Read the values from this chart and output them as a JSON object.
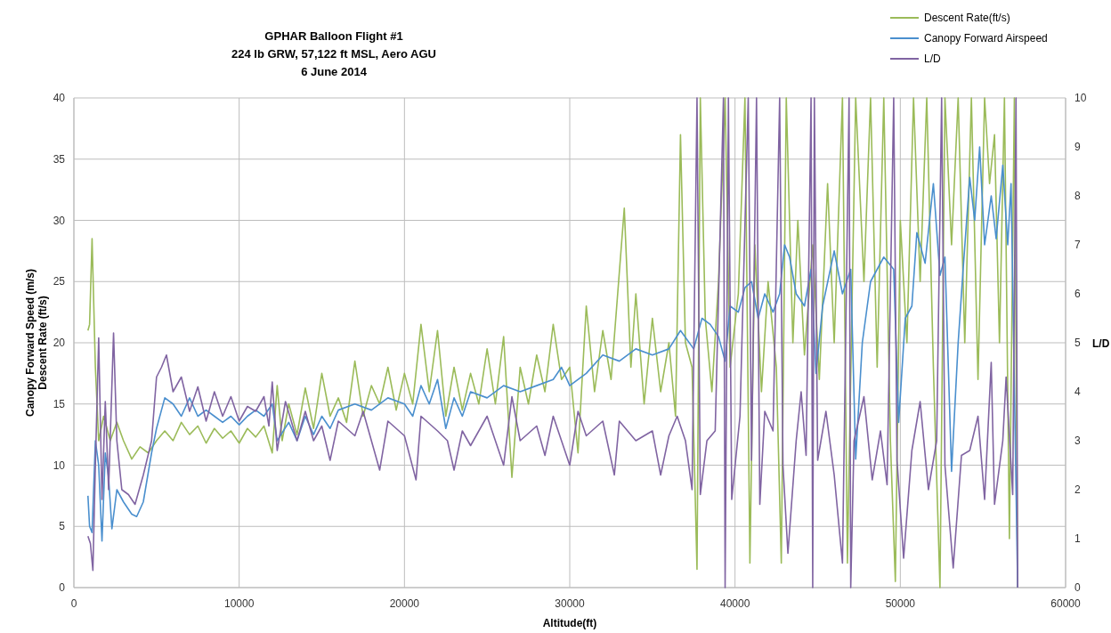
{
  "chart_data": {
    "type": "line",
    "title": "GPHAR Balloon Flight #1",
    "subtitle": "224 lb GRW, 57,122 ft MSL, Aero AGU\n6 June 2014",
    "xlabel": "Altitude(ft)",
    "ylabel": "Canopy Forward Speed (m/s)\nDescent Rate (ft/s)",
    "y2label": "L/D",
    "xlim": [
      0,
      60000
    ],
    "xticks": [
      0,
      10000,
      20000,
      30000,
      40000,
      50000,
      60000
    ],
    "ylim": [
      0,
      40
    ],
    "yticks": [
      0,
      5,
      10,
      15,
      20,
      25,
      30,
      35,
      40
    ],
    "y2lim": [
      0,
      10
    ],
    "y2ticks": [
      0,
      1,
      2,
      3,
      4,
      5,
      6,
      7,
      8,
      9,
      10
    ],
    "grid": true,
    "legend": "top right",
    "marker": "none",
    "line_style": "solid",
    "series": [
      {
        "name": "Descent Rate(ft/s)",
        "color": "#9bbb59",
        "x": [
          850,
          950,
          1100,
          1300,
          1500,
          1800,
          2200,
          2600,
          3000,
          3500,
          4000,
          4500,
          5000,
          5500,
          6000,
          6500,
          7000,
          7500,
          8000,
          8500,
          9000,
          9500,
          10000,
          10500,
          11000,
          11500,
          12000,
          12300,
          12600,
          13000,
          13500,
          14000,
          14500,
          15000,
          15500,
          16000,
          16500,
          17000,
          17500,
          18000,
          18500,
          19000,
          19500,
          20000,
          20500,
          21000,
          21500,
          22000,
          22500,
          23000,
          23500,
          24000,
          24500,
          25000,
          25500,
          26000,
          26500,
          27000,
          27500,
          28000,
          28500,
          29000,
          29500,
          30000,
          30500,
          31000,
          31500,
          32000,
          32500,
          33300,
          33700,
          34000,
          34500,
          35000,
          35500,
          36000,
          36400,
          36700,
          37000,
          37400,
          37700,
          37900,
          38200,
          38600,
          39000,
          39400,
          39700,
          40200,
          40600,
          40900,
          41200,
          41600,
          42000,
          42500,
          42800,
          43100,
          43500,
          43800,
          44200,
          44700,
          45100,
          45600,
          46000,
          46500,
          46800,
          47300,
          47800,
          48200,
          48600,
          49000,
          49400,
          49700,
          50000,
          50400,
          50800,
          51200,
          51600,
          52000,
          52400,
          52700,
          53100,
          53500,
          53900,
          54300,
          54700,
          55100,
          55400,
          55700,
          56000,
          56300,
          56600,
          56900,
          57100
        ],
        "values": [
          21,
          21.5,
          28.5,
          18,
          12,
          14,
          12,
          13.5,
          12,
          10.5,
          11.5,
          11,
          12,
          12.8,
          12,
          13.5,
          12.5,
          13.2,
          11.8,
          13,
          12.2,
          12.8,
          11.8,
          13,
          12.3,
          13.2,
          11,
          16.5,
          12,
          15,
          12.5,
          16.3,
          13,
          17.5,
          14,
          15.5,
          13.5,
          18.5,
          14,
          16.5,
          15,
          18,
          14.5,
          17.5,
          15,
          21.5,
          16,
          21,
          14,
          18,
          14.5,
          17.5,
          15,
          19.5,
          15,
          20.5,
          9,
          18,
          15,
          19,
          16,
          21.5,
          17,
          18,
          11,
          23,
          16,
          21,
          17,
          31,
          18,
          24,
          15,
          22,
          16,
          20,
          14,
          37,
          20,
          18,
          1.5,
          40,
          22,
          16,
          25,
          40,
          18,
          24,
          40,
          2,
          28,
          16,
          25,
          18,
          2,
          40,
          20,
          30,
          19,
          28,
          17,
          33,
          20,
          40,
          2,
          40,
          25,
          40,
          18,
          40,
          12,
          0.5,
          30,
          20,
          40,
          25,
          40,
          18,
          0,
          40,
          28,
          40,
          20,
          40,
          17,
          40,
          33,
          37,
          20,
          40,
          4,
          40,
          0
        ]
      },
      {
        "name": "Canopy Forward Airspeed",
        "color": "#4a8fce",
        "x": [
          850,
          950,
          1100,
          1300,
          1500,
          1700,
          1900,
          2100,
          2300,
          2600,
          3000,
          3500,
          3800,
          4200,
          4700,
          5000,
          5500,
          6000,
          6500,
          7000,
          7500,
          8000,
          8500,
          9000,
          9500,
          10000,
          10500,
          11000,
          11500,
          12000,
          12300,
          13000,
          13500,
          14000,
          14500,
          15000,
          15500,
          16000,
          17000,
          18000,
          19000,
          20000,
          20500,
          21000,
          21500,
          22000,
          22500,
          23000,
          23500,
          24000,
          25000,
          26000,
          27000,
          28000,
          29000,
          29500,
          30000,
          31000,
          32000,
          33000,
          34000,
          35000,
          36000,
          36700,
          37500,
          38000,
          38500,
          39000,
          39400,
          39700,
          40200,
          40600,
          41000,
          41400,
          41800,
          42300,
          42700,
          43000,
          43300,
          43700,
          44200,
          44600,
          44900,
          45300,
          46000,
          46500,
          47000,
          47300,
          47700,
          48200,
          49000,
          49600,
          49900,
          50300,
          50700,
          51000,
          51500,
          52000,
          52400,
          52700,
          53100,
          53500,
          53800,
          54200,
          54500,
          54800,
          55100,
          55500,
          55800,
          56200,
          56500,
          56700,
          57100
        ],
        "values": [
          7.5,
          5,
          4.5,
          12,
          10,
          3.8,
          11,
          9,
          4.8,
          8,
          7,
          6,
          5.8,
          7,
          11,
          13,
          15.5,
          15,
          14,
          15.5,
          14,
          14.5,
          14,
          13.5,
          14,
          13.3,
          14,
          14.5,
          14,
          15,
          12,
          13.5,
          12,
          14,
          12.5,
          14,
          13,
          14.5,
          15,
          14.5,
          15.5,
          15,
          14,
          16.5,
          15,
          17,
          13,
          15.5,
          14,
          16,
          15.5,
          16.5,
          16,
          16.5,
          17,
          18,
          16.5,
          17.5,
          19,
          18.5,
          19.5,
          19,
          19.5,
          21,
          19.5,
          22,
          21.5,
          20.5,
          18.5,
          23,
          22.5,
          24.5,
          25,
          22,
          24,
          22.5,
          24,
          28,
          27,
          24,
          23,
          26,
          17.5,
          23,
          27.5,
          24,
          26,
          10.5,
          20,
          25,
          27,
          26,
          13.5,
          22,
          23,
          29,
          26.5,
          33,
          25.5,
          27,
          9.5,
          20,
          26,
          33.5,
          30,
          36,
          28,
          32,
          28.5,
          34.5,
          28,
          33,
          0
        ]
      },
      {
        "name": "L/D",
        "color": "#8064a2",
        "axis": "y2",
        "x": [
          850,
          1000,
          1150,
          1300,
          1500,
          1700,
          1900,
          2100,
          2400,
          2600,
          2900,
          3300,
          3700,
          4200,
          4700,
          5000,
          5300,
          5600,
          6000,
          6500,
          7000,
          7500,
          8000,
          8500,
          9000,
          9500,
          10000,
          10500,
          11000,
          11500,
          11800,
          12000,
          12300,
          12800,
          13500,
          14000,
          14500,
          15000,
          15500,
          16000,
          17000,
          17500,
          18000,
          18500,
          19000,
          20000,
          20700,
          21000,
          22000,
          22600,
          23000,
          23500,
          24000,
          25000,
          25500,
          26000,
          26500,
          27000,
          28000,
          28500,
          29000,
          29500,
          30000,
          30500,
          31000,
          32000,
          32700,
          33000,
          34000,
          35000,
          35500,
          36000,
          36500,
          37000,
          37400,
          37700,
          37900,
          38300,
          38800,
          39300,
          39400,
          39600,
          39800,
          40300,
          40800,
          41000,
          41300,
          41500,
          41800,
          42300,
          42700,
          42900,
          43200,
          43700,
          44000,
          44300,
          44600,
          44700,
          44800,
          45000,
          45500,
          46000,
          46500,
          46900,
          47000,
          47200,
          47800,
          48300,
          48800,
          49200,
          49600,
          49800,
          50200,
          50700,
          51200,
          51700,
          52200,
          52500,
          52700,
          53200,
          53700,
          54200,
          54700,
          55100,
          55500,
          55700,
          56200,
          56400,
          56800,
          57000,
          57100
        ],
        "values": [
          1.05,
          0.9,
          0.35,
          2.5,
          5.1,
          1.8,
          3.8,
          2,
          5.2,
          3,
          2,
          1.9,
          1.7,
          2.3,
          3,
          4.3,
          4.5,
          4.75,
          4,
          4.3,
          3.6,
          4.1,
          3.4,
          4,
          3.5,
          3.9,
          3.4,
          3.7,
          3.6,
          3.9,
          3.3,
          4.2,
          2.8,
          3.8,
          3,
          3.6,
          3,
          3.3,
          2.6,
          3.4,
          3.1,
          3.6,
          3,
          2.4,
          3.4,
          3.1,
          2.2,
          3.5,
          3.2,
          3,
          2.4,
          3.2,
          2.9,
          3.5,
          3,
          2.5,
          3.9,
          3,
          3.3,
          2.7,
          3.5,
          3,
          2.5,
          3.6,
          3.1,
          3.4,
          2.3,
          3.4,
          3,
          3.2,
          2.3,
          3.1,
          3.5,
          3,
          2,
          10,
          1.9,
          3,
          3.2,
          10,
          0,
          10,
          1.8,
          3.5,
          10,
          2.6,
          10,
          1.7,
          3.6,
          3.2,
          10,
          2.5,
          0.7,
          3,
          4,
          2.7,
          10,
          0,
          10,
          2.6,
          3.6,
          2.3,
          0.5,
          10,
          0,
          3,
          3.9,
          2.2,
          3.2,
          2.1,
          10,
          2.6,
          0.6,
          2.8,
          3.8,
          2,
          3,
          10,
          2.5,
          0.4,
          2.7,
          2.8,
          3.5,
          1.8,
          4.6,
          1.7,
          3,
          4.3,
          1.9,
          10,
          0
        ]
      }
    ]
  }
}
